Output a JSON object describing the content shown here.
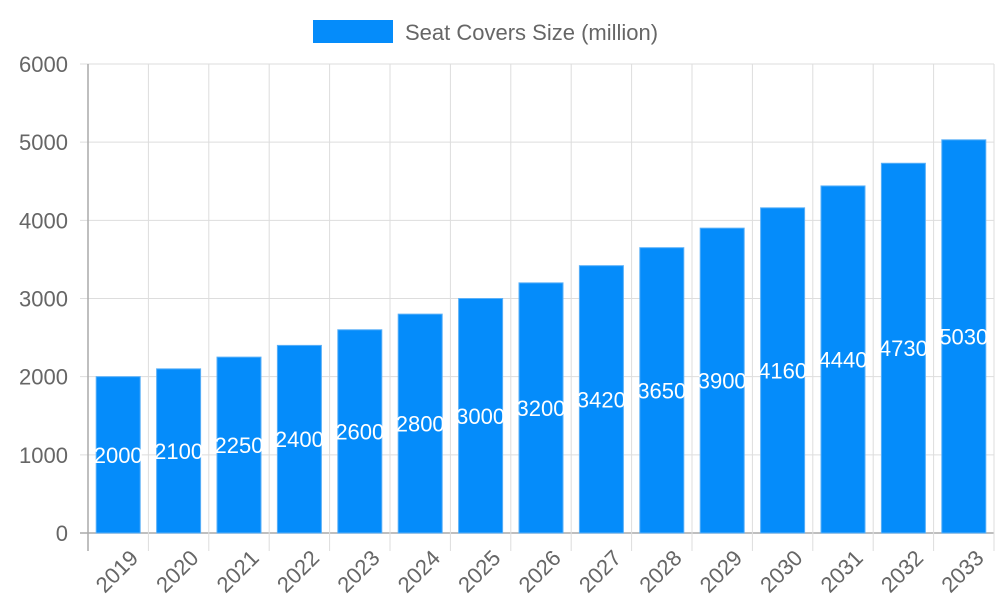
{
  "chart_data": {
    "type": "bar",
    "categories": [
      "2019",
      "2020",
      "2021",
      "2022",
      "2023",
      "2024",
      "2025",
      "2026",
      "2027",
      "2028",
      "2029",
      "2030",
      "2031",
      "2032",
      "2033"
    ],
    "series": [
      {
        "name": "Seat Covers Size (million)",
        "values": [
          2000,
          2100,
          2250,
          2400,
          2600,
          2800,
          3000,
          3200,
          3420,
          3650,
          3900,
          4160,
          4440,
          4730,
          5030
        ],
        "color": "#058cfa"
      }
    ],
    "ylim": [
      0,
      6000
    ],
    "yticks": [
      0,
      1000,
      2000,
      3000,
      4000,
      5000,
      6000
    ],
    "xlabel": "",
    "ylabel": "",
    "grid": true,
    "legend": "top-center",
    "data_labels": "center, white"
  }
}
